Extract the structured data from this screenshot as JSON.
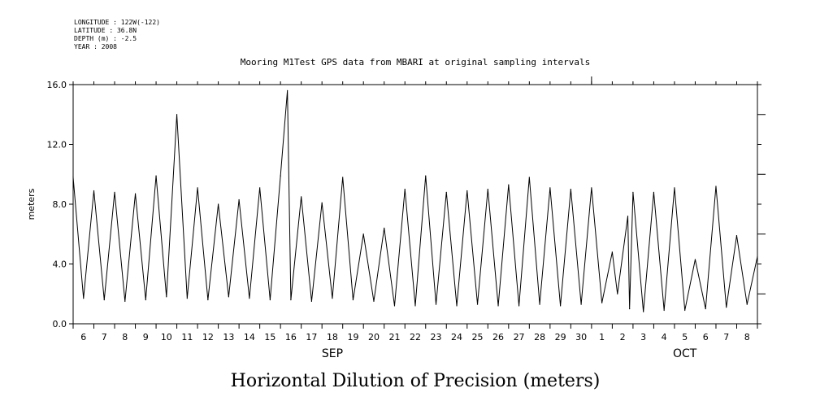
{
  "header": {
    "longitude": "LONGITUDE : 122W(-122)",
    "latitude": "LATITUDE : 36.8N",
    "depth": "DEPTH (m) : -2.5",
    "year": "YEAR : 2008"
  },
  "chart_data": {
    "type": "line",
    "title": "Mooring M1Test GPS data from MBARI at original sampling intervals",
    "xlabel": "Horizontal Dilution of Precision (meters)",
    "ylabel": "meters",
    "ylim": [
      0,
      16
    ],
    "xlim": [
      "2008-09-05 12:00",
      "2008-10-08 12:00"
    ],
    "yticks": [
      "0.0",
      "4.0",
      "8.0",
      "12.0",
      "16.0"
    ],
    "ytick_values": [
      0,
      4,
      8,
      12,
      16
    ],
    "day_labels": [
      "6",
      "7",
      "8",
      "9",
      "10",
      "11",
      "12",
      "13",
      "14",
      "15",
      "16",
      "17",
      "18",
      "19",
      "20",
      "21",
      "22",
      "23",
      "24",
      "25",
      "26",
      "27",
      "28",
      "29",
      "30",
      "1",
      "2",
      "3",
      "4",
      "5",
      "6",
      "7",
      "8"
    ],
    "months": [
      {
        "label": "SEP",
        "at_day_index": 12
      },
      {
        "label": "OCT",
        "at_day_index": 29
      }
    ],
    "grid": false,
    "series": [
      {
        "values": [
          {
            "x": "2008-09-05 12:00",
            "y": 9.8
          },
          {
            "x": "2008-09-06 00:00",
            "y": 1.7
          },
          {
            "x": "2008-09-06 12:00",
            "y": 8.9
          },
          {
            "x": "2008-09-07 00:00",
            "y": 1.6
          },
          {
            "x": "2008-09-07 12:00",
            "y": 8.8
          },
          {
            "x": "2008-09-08 00:00",
            "y": 1.5
          },
          {
            "x": "2008-09-08 12:00",
            "y": 8.7
          },
          {
            "x": "2008-09-09 00:00",
            "y": 1.6
          },
          {
            "x": "2008-09-09 12:00",
            "y": 9.9
          },
          {
            "x": "2008-09-10 00:00",
            "y": 1.8
          },
          {
            "x": "2008-09-10 12:00",
            "y": 14.0
          },
          {
            "x": "2008-09-11 00:00",
            "y": 1.7
          },
          {
            "x": "2008-09-11 12:00",
            "y": 9.1
          },
          {
            "x": "2008-09-12 00:00",
            "y": 1.6
          },
          {
            "x": "2008-09-12 12:00",
            "y": 8.0
          },
          {
            "x": "2008-09-13 00:00",
            "y": 1.8
          },
          {
            "x": "2008-09-13 12:00",
            "y": 8.3
          },
          {
            "x": "2008-09-14 00:00",
            "y": 1.7
          },
          {
            "x": "2008-09-14 12:00",
            "y": 9.1
          },
          {
            "x": "2008-09-15 00:00",
            "y": 1.6
          },
          {
            "x": "2008-09-15 12:00",
            "y": 9.9
          },
          {
            "x": "2008-09-15 20:00",
            "y": 15.6
          },
          {
            "x": "2008-09-16 00:00",
            "y": 1.6
          },
          {
            "x": "2008-09-16 12:00",
            "y": 8.5
          },
          {
            "x": "2008-09-17 00:00",
            "y": 1.5
          },
          {
            "x": "2008-09-17 12:00",
            "y": 8.1
          },
          {
            "x": "2008-09-18 00:00",
            "y": 1.7
          },
          {
            "x": "2008-09-18 12:00",
            "y": 9.8
          },
          {
            "x": "2008-09-19 00:00",
            "y": 1.6
          },
          {
            "x": "2008-09-19 12:00",
            "y": 6.0
          },
          {
            "x": "2008-09-20 00:00",
            "y": 1.5
          },
          {
            "x": "2008-09-20 12:00",
            "y": 6.4
          },
          {
            "x": "2008-09-21 00:00",
            "y": 1.2
          },
          {
            "x": "2008-09-21 12:00",
            "y": 9.0
          },
          {
            "x": "2008-09-22 00:00",
            "y": 1.2
          },
          {
            "x": "2008-09-22 12:00",
            "y": 9.9
          },
          {
            "x": "2008-09-23 00:00",
            "y": 1.3
          },
          {
            "x": "2008-09-23 12:00",
            "y": 8.8
          },
          {
            "x": "2008-09-24 00:00",
            "y": 1.2
          },
          {
            "x": "2008-09-24 12:00",
            "y": 8.9
          },
          {
            "x": "2008-09-25 00:00",
            "y": 1.3
          },
          {
            "x": "2008-09-25 12:00",
            "y": 9.0
          },
          {
            "x": "2008-09-26 00:00",
            "y": 1.2
          },
          {
            "x": "2008-09-26 12:00",
            "y": 9.3
          },
          {
            "x": "2008-09-27 00:00",
            "y": 1.2
          },
          {
            "x": "2008-09-27 12:00",
            "y": 9.8
          },
          {
            "x": "2008-09-28 00:00",
            "y": 1.3
          },
          {
            "x": "2008-09-28 12:00",
            "y": 9.1
          },
          {
            "x": "2008-09-29 00:00",
            "y": 1.2
          },
          {
            "x": "2008-09-29 12:00",
            "y": 9.0
          },
          {
            "x": "2008-09-30 00:00",
            "y": 1.3
          },
          {
            "x": "2008-09-30 12:00",
            "y": 9.1
          },
          {
            "x": "2008-10-01 00:00",
            "y": 1.4
          },
          {
            "x": "2008-10-01 12:00",
            "y": 4.8
          },
          {
            "x": "2008-10-01 18:00",
            "y": 2.0
          },
          {
            "x": "2008-10-02 06:00",
            "y": 7.2
          },
          {
            "x": "2008-10-02 08:00",
            "y": 1.0
          },
          {
            "x": "2008-10-02 12:00",
            "y": 8.8
          },
          {
            "x": "2008-10-03 00:00",
            "y": 0.8
          },
          {
            "x": "2008-10-03 12:00",
            "y": 8.8
          },
          {
            "x": "2008-10-04 00:00",
            "y": 0.9
          },
          {
            "x": "2008-10-04 12:00",
            "y": 9.1
          },
          {
            "x": "2008-10-05 00:00",
            "y": 0.9
          },
          {
            "x": "2008-10-05 12:00",
            "y": 4.3
          },
          {
            "x": "2008-10-06 00:00",
            "y": 1.0
          },
          {
            "x": "2008-10-06 12:00",
            "y": 9.2
          },
          {
            "x": "2008-10-07 00:00",
            "y": 1.1
          },
          {
            "x": "2008-10-07 12:00",
            "y": 5.9
          },
          {
            "x": "2008-10-08 00:00",
            "y": 1.3
          },
          {
            "x": "2008-10-08 12:00",
            "y": 4.5
          }
        ]
      }
    ]
  }
}
